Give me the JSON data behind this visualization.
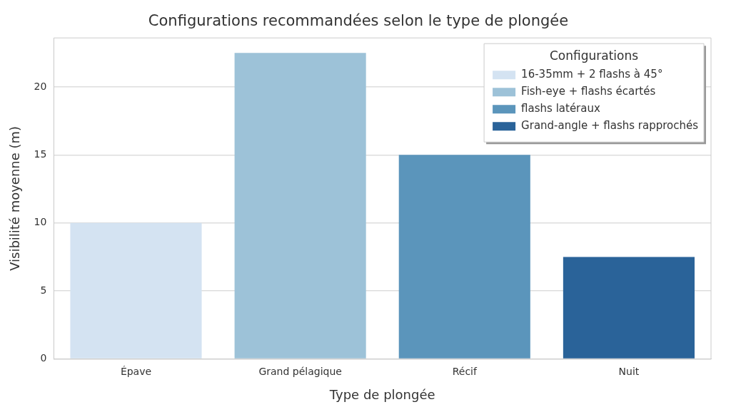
{
  "chart_data": {
    "type": "bar",
    "title": "Configurations recommandées selon le type de plongée",
    "xlabel": "Type de plongée",
    "ylabel": "Visibilité moyenne (m)",
    "legend_title": "Configurations",
    "categories": [
      "Épave",
      "Grand pélagique",
      "Récif",
      "Nuit"
    ],
    "series": [
      {
        "name": "16-35mm + 2 flashs à 45°",
        "color": "#d4e3f2",
        "values": [
          10,
          null,
          null,
          null
        ]
      },
      {
        "name": "Fish-eye + flashs écartés",
        "color": "#9dc2d8",
        "values": [
          null,
          22.5,
          null,
          null
        ]
      },
      {
        "name": "flashs latéraux",
        "color": "#5b95bb",
        "values": [
          null,
          null,
          15,
          null
        ]
      },
      {
        "name": "Grand-angle + flashs rapprochés",
        "color": "#2a6399",
        "values": [
          null,
          null,
          null,
          7.5
        ]
      }
    ],
    "ylim": [
      0,
      23.6
    ],
    "yticks": [
      0,
      5,
      10,
      15,
      20
    ],
    "grid": "y",
    "legend": "top right"
  }
}
